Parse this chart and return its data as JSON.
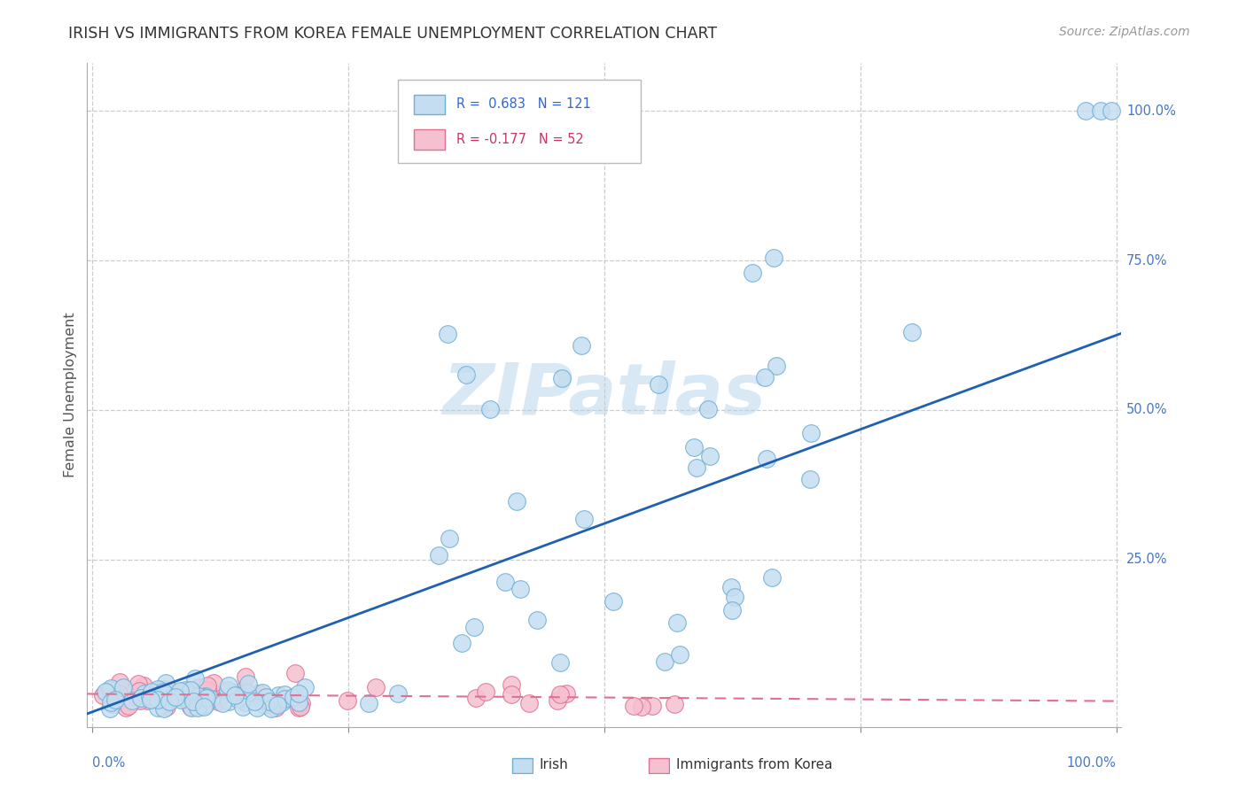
{
  "title": "IRISH VS IMMIGRANTS FROM KOREA FEMALE UNEMPLOYMENT CORRELATION CHART",
  "source": "Source: ZipAtlas.com",
  "ylabel": "Female Unemployment",
  "ytick_labels": [
    "25.0%",
    "50.0%",
    "75.0%",
    "100.0%"
  ],
  "ytick_positions": [
    0.25,
    0.5,
    0.75,
    1.0
  ],
  "legend_r1": "R =  0.683   N = 121",
  "legend_r2": "R = -0.177   N = 52",
  "irish_color": "#c5ddf0",
  "korean_color": "#f5c0d0",
  "irish_edge_color": "#6baed6",
  "korean_edge_color": "#e07090",
  "blue_line_color": "#2060b0",
  "pink_line_color": "#e07090",
  "watermark_color": "#d8e8f5",
  "legend_label_irish": "Irish",
  "legend_label_korean": "Immigrants from Korea",
  "irish_slope": 0.63,
  "irish_intercept": -0.005,
  "korean_slope": -0.012,
  "korean_intercept": 0.025
}
